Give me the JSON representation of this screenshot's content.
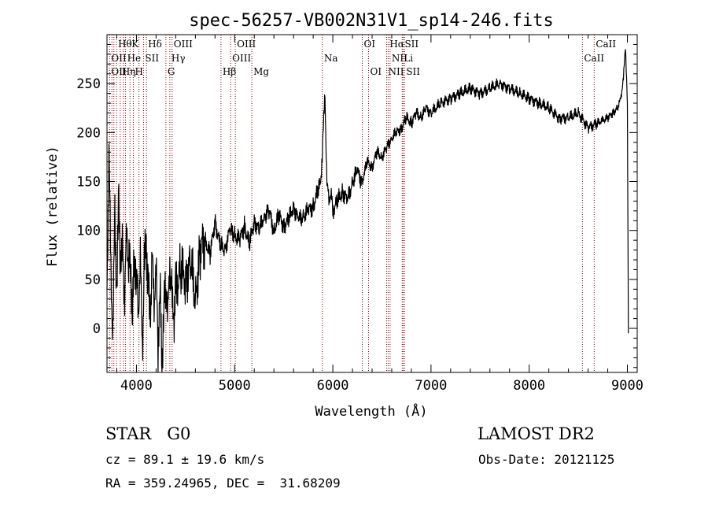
{
  "chart_data": {
    "type": "line",
    "title": "spec-56257-VB002N31V1_sp14-246.fits",
    "xlabel": "Wavelength (Å)",
    "ylabel": "Flux (relative)",
    "xlim": [
      3700,
      9100
    ],
    "ylim": [
      -45,
      300
    ],
    "xticks": [
      4000,
      5000,
      6000,
      7000,
      8000,
      9000
    ],
    "yticks": [
      0,
      50,
      100,
      150,
      200,
      250
    ],
    "grid": false,
    "series": [
      {
        "x": [
          3700,
          3720,
          3740,
          3760,
          3780,
          3800,
          3820,
          3840,
          3860,
          3880,
          3900,
          3920,
          3940,
          3960,
          3980,
          4000,
          4020,
          4040,
          4060,
          4080,
          4100,
          4120,
          4140,
          4160,
          4180,
          4200,
          4220,
          4240,
          4260,
          4280,
          4300,
          4320,
          4340,
          4360,
          4380,
          4400,
          4450,
          4500,
          4550,
          4600,
          4650,
          4700,
          4750,
          4800,
          4850,
          4900,
          4950,
          5000,
          5050,
          5100,
          5150,
          5200,
          5250,
          5300,
          5350,
          5400,
          5450,
          5500,
          5550,
          5600,
          5650,
          5700,
          5750,
          5800,
          5850,
          5880,
          5900,
          5920,
          5940,
          5960,
          5980,
          6000,
          6050,
          6100,
          6150,
          6200,
          6250,
          6300,
          6350,
          6400,
          6450,
          6500,
          6550,
          6600,
          6650,
          6700,
          6750,
          6800,
          6850,
          6900,
          6950,
          7000,
          7100,
          7200,
          7300,
          7400,
          7500,
          7600,
          7700,
          7800,
          7900,
          8000,
          8100,
          8200,
          8300,
          8400,
          8500,
          8600,
          8700,
          8800,
          8850,
          8900,
          8920,
          8940,
          8960,
          8980,
          9000,
          9010
        ],
        "y": [
          40,
          180,
          60,
          -10,
          120,
          30,
          140,
          50,
          90,
          20,
          110,
          60,
          70,
          10,
          80,
          50,
          20,
          70,
          -20,
          60,
          90,
          40,
          10,
          70,
          30,
          60,
          -15,
          40,
          -35,
          20,
          50,
          10,
          70,
          30,
          10,
          40,
          60,
          50,
          70,
          30,
          80,
          90,
          75,
          110,
          85,
          80,
          100,
          95,
          90,
          105,
          85,
          110,
          100,
          115,
          120,
          100,
          115,
          105,
          110,
          125,
          110,
          115,
          120,
          125,
          140,
          150,
          200,
          235,
          150,
          130,
          140,
          120,
          130,
          140,
          130,
          150,
          160,
          150,
          170,
          165,
          180,
          175,
          185,
          195,
          200,
          205,
          215,
          210,
          220,
          215,
          225,
          220,
          230,
          235,
          240,
          245,
          240,
          245,
          250,
          245,
          240,
          235,
          230,
          225,
          215,
          215,
          220,
          205,
          210,
          215,
          220,
          225,
          230,
          240,
          255,
          290,
          230,
          -5
        ],
        "color": "#000000"
      }
    ],
    "lines": [
      {
        "w": 3727,
        "color": "#8b0000"
      },
      {
        "w": 3750,
        "color": "#8b0000"
      },
      {
        "w": 3770,
        "color": "#8b0000"
      },
      {
        "w": 3797,
        "color": "#8b0000"
      },
      {
        "w": 3835,
        "color": "#8b0000"
      },
      {
        "w": 3869,
        "color": "#8b0000"
      },
      {
        "w": 3889,
        "color": "#8b0000"
      },
      {
        "w": 3934,
        "color": "#8b0000"
      },
      {
        "w": 3968,
        "color": "#8b0000"
      },
      {
        "w": 4026,
        "color": "#8b0000"
      },
      {
        "w": 4072,
        "color": "#8b0000"
      },
      {
        "w": 4102,
        "color": "#8b0000"
      },
      {
        "w": 4300,
        "color": "#8b0000"
      },
      {
        "w": 4340,
        "color": "#8b0000"
      },
      {
        "w": 4363,
        "color": "#8b0000"
      },
      {
        "w": 4861,
        "color": "#8b0000"
      },
      {
        "w": 4959,
        "color": "#8b0000"
      },
      {
        "w": 5007,
        "color": "#8b0000"
      },
      {
        "w": 5175,
        "color": "#8b0000"
      },
      {
        "w": 5894,
        "color": "#8b0000"
      },
      {
        "w": 6300,
        "color": "#8b0000"
      },
      {
        "w": 6364,
        "color": "#8b0000"
      },
      {
        "w": 6548,
        "color": "#8b0000"
      },
      {
        "w": 6563,
        "color": "#8b0000"
      },
      {
        "w": 6583,
        "color": "#8b0000"
      },
      {
        "w": 6707,
        "color": "#8b0000"
      },
      {
        "w": 6716,
        "color": "#8b0000"
      },
      {
        "w": 6731,
        "color": "#8b0000"
      },
      {
        "w": 8542,
        "color": "#8b0000"
      },
      {
        "w": 8662,
        "color": "#8b0000"
      }
    ],
    "line_labels": [
      {
        "text": "Hθ",
        "w": 3797,
        "row": 0
      },
      {
        "text": "K",
        "w": 3934,
        "row": 0
      },
      {
        "text": "Hδ",
        "w": 4102,
        "row": 0
      },
      {
        "text": "OIII",
        "w": 4363,
        "row": 0
      },
      {
        "text": "OIII",
        "w": 5007,
        "row": 0
      },
      {
        "text": "OI",
        "w": 6300,
        "row": 0
      },
      {
        "text": "Hα",
        "w": 6563,
        "row": 0
      },
      {
        "text": "SII",
        "w": 6716,
        "row": 0
      },
      {
        "text": "CaII",
        "w": 8662,
        "row": 0
      },
      {
        "text": "OII",
        "w": 3727,
        "row": 1
      },
      {
        "text": "He",
        "w": 3889,
        "row": 1
      },
      {
        "text": "SII",
        "w": 4072,
        "row": 1
      },
      {
        "text": "Hγ",
        "w": 4340,
        "row": 1
      },
      {
        "text": "OIII",
        "w": 4959,
        "row": 1
      },
      {
        "text": "Na",
        "w": 5894,
        "row": 1
      },
      {
        "text": "NII",
        "w": 6583,
        "row": 1
      },
      {
        "text": "Li",
        "w": 6707,
        "row": 1
      },
      {
        "text": "CaII",
        "w": 8542,
        "row": 1
      },
      {
        "text": "OII",
        "w": 3727,
        "row": 2
      },
      {
        "text": "Hη",
        "w": 3835,
        "row": 2
      },
      {
        "text": "H",
        "w": 3968,
        "row": 2
      },
      {
        "text": "G",
        "w": 4300,
        "row": 2
      },
      {
        "text": "Hβ",
        "w": 4861,
        "row": 2
      },
      {
        "text": "Mg",
        "w": 5175,
        "row": 2
      },
      {
        "text": "OI",
        "w": 6364,
        "row": 2
      },
      {
        "text": "NII",
        "w": 6548,
        "row": 2
      },
      {
        "text": "SII",
        "w": 6731,
        "row": 2
      }
    ]
  },
  "info": {
    "class_text": "STAR   G0",
    "survey": "LAMOST DR2",
    "cz_text": "cz = 89.1 ± 19.6 km/s",
    "obs_date": "Obs-Date: 20121125",
    "coords_text": "RA = 359.24965, DEC =  31.68209"
  }
}
